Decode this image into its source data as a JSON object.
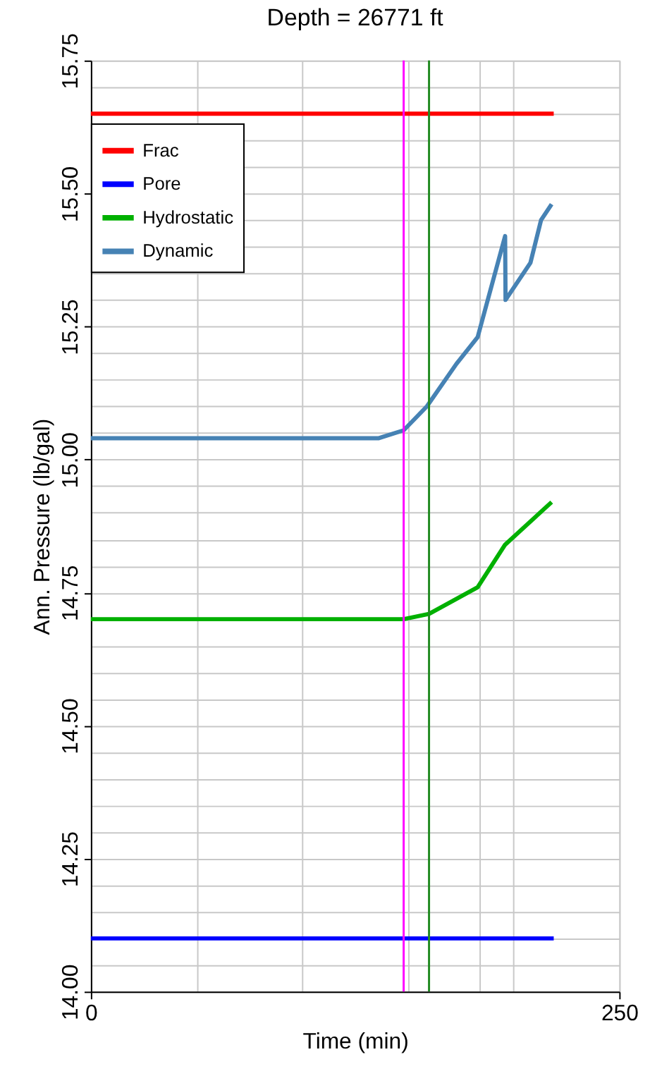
{
  "chart_data": {
    "type": "line",
    "title": "Depth = 26771 ft",
    "xlabel": "Time (min)",
    "ylabel": "Ann. Pressure (lb/gal)",
    "xlim": [
      0,
      250
    ],
    "ylim": [
      14.0,
      15.75
    ],
    "xticks": [
      0,
      {
        "value": 50,
        "label": null
      },
      {
        "value": 100,
        "label": null
      },
      {
        "value": 150,
        "label": null
      },
      {
        "value": 184,
        "label": null
      },
      {
        "value": 200,
        "label": null
      },
      250
    ],
    "yticks": [
      {
        "value": 14.0,
        "label": "14.00"
      },
      {
        "value": 14.05,
        "label": null
      },
      {
        "value": 14.1,
        "label": null
      },
      {
        "value": 14.15,
        "label": null
      },
      {
        "value": 14.2,
        "label": null
      },
      {
        "value": 14.25,
        "label": "14.25"
      },
      {
        "value": 14.3,
        "label": null
      },
      {
        "value": 14.35,
        "label": null
      },
      {
        "value": 14.4,
        "label": null
      },
      {
        "value": 14.45,
        "label": null
      },
      {
        "value": 14.5,
        "label": "14.50"
      },
      {
        "value": 14.55,
        "label": null
      },
      {
        "value": 14.6,
        "label": null
      },
      {
        "value": 14.65,
        "label": null
      },
      {
        "value": 14.7,
        "label": null
      },
      {
        "value": 14.75,
        "label": "14.75"
      },
      {
        "value": 14.8,
        "label": null
      },
      {
        "value": 14.85,
        "label": null
      },
      {
        "value": 14.9,
        "label": null
      },
      {
        "value": 14.95,
        "label": null
      },
      {
        "value": 15.0,
        "label": "15.00"
      },
      {
        "value": 15.05,
        "label": null
      },
      {
        "value": 15.1,
        "label": null
      },
      {
        "value": 15.15,
        "label": null
      },
      {
        "value": 15.2,
        "label": null
      },
      {
        "value": 15.25,
        "label": "15.25"
      },
      {
        "value": 15.3,
        "label": null
      },
      {
        "value": 15.35,
        "label": null
      },
      {
        "value": 15.4,
        "label": null
      },
      {
        "value": 15.45,
        "label": null
      },
      {
        "value": 15.5,
        "label": "15.50"
      },
      {
        "value": 15.55,
        "label": null
      },
      {
        "value": 15.6,
        "label": null
      },
      {
        "value": 15.65,
        "label": null
      },
      {
        "value": 15.7,
        "label": null
      },
      {
        "value": 15.75,
        "label": "15.75"
      }
    ],
    "grid": true,
    "legend": "top left",
    "marker": "none",
    "line_style": "solid",
    "series": [
      {
        "name": "Frac",
        "color": "#ff0000",
        "x": [
          0,
          219
        ],
        "values": [
          15.65,
          15.65
        ]
      },
      {
        "name": "Pore",
        "color": "#0000ff",
        "x": [
          0,
          219
        ],
        "values": [
          14.1,
          14.1
        ]
      },
      {
        "name": "Hydrostatic",
        "color": "#00b000",
        "x": [
          0,
          148,
          160,
          183,
          196,
          218
        ],
        "values": [
          14.7,
          14.7,
          14.71,
          14.76,
          14.84,
          14.92
        ]
      },
      {
        "name": "Dynamic",
        "color": "#4682b4",
        "x": [
          0,
          136,
          148,
          159,
          173,
          183,
          196,
          196.2,
          208,
          213,
          218
        ],
        "values": [
          15.04,
          15.04,
          15.055,
          15.1,
          15.18,
          15.23,
          15.42,
          15.3,
          15.37,
          15.45,
          15.48
        ]
      }
    ],
    "ref_lines": [
      {
        "axis": "x",
        "value": 148,
        "color": "#ff00ff"
      },
      {
        "axis": "x",
        "value": 160,
        "color": "#228b22"
      }
    ]
  }
}
